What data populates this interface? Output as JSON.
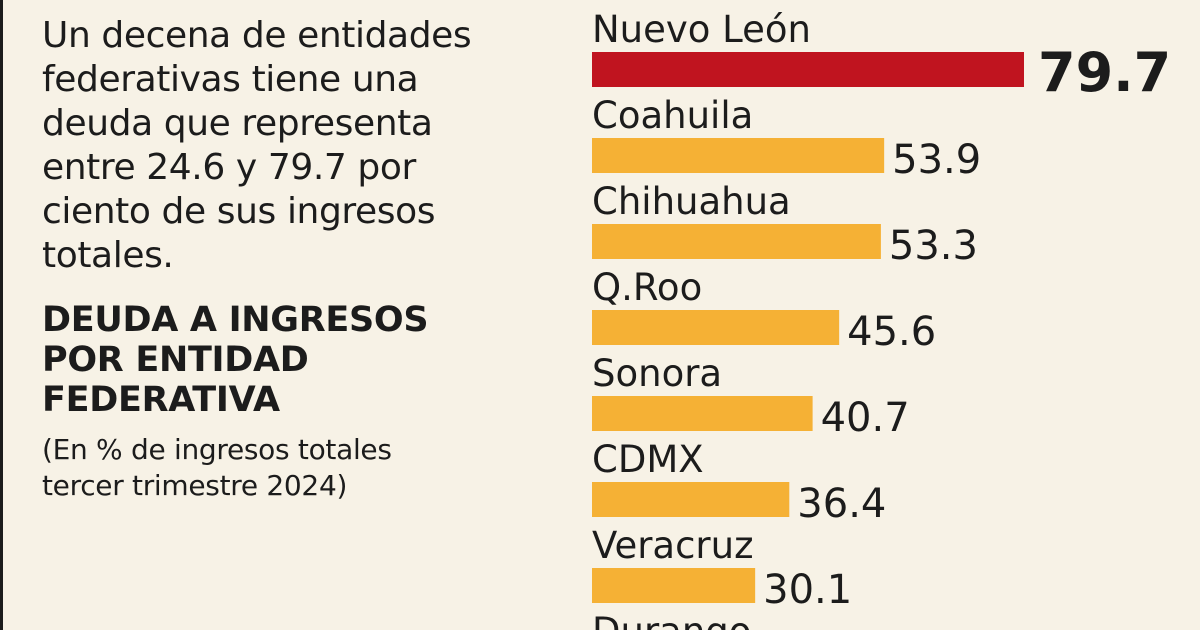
{
  "intro_lines": [
    "Un decena de entidades",
    "federativas tiene una",
    "deuda que representa",
    "entre 24.6 y 79.7 por",
    "ciento de sus ingresos",
    "totales."
  ],
  "title_lines": [
    "DEUDA A INGRESOS",
    "POR ENTIDAD",
    "FEDERATIVA"
  ],
  "subtitle_lines": [
    "(En % de ingresos totales",
    "tercer trimestre 2024)"
  ],
  "colors": {
    "highlight": "#c0141f",
    "bar": "#f5b135",
    "text": "#1c1c1c",
    "background": "#f7f2e6"
  },
  "chart_data": {
    "type": "bar",
    "orientation": "horizontal",
    "categories": [
      "Nuevo León",
      "Coahuila",
      "Chihuahua",
      "Q.Roo",
      "Sonora",
      "CDMX",
      "Veracruz",
      "Durango"
    ],
    "values": [
      79.7,
      53.9,
      53.3,
      45.6,
      40.7,
      36.4,
      30.1,
      null
    ],
    "value_labels": [
      "79.7",
      "53.9",
      "53.3",
      "45.6",
      "40.7",
      "36.4",
      "30.1",
      ""
    ],
    "highlight_index": 0,
    "title": "DEUDA A INGRESOS POR ENTIDAD FEDERATIVA",
    "subtitle": "(En % de ingresos totales tercer trimestre 2024)",
    "xlabel": "",
    "ylabel": "",
    "xlim": [
      0,
      79.7
    ],
    "grid": false,
    "legend": "none"
  }
}
